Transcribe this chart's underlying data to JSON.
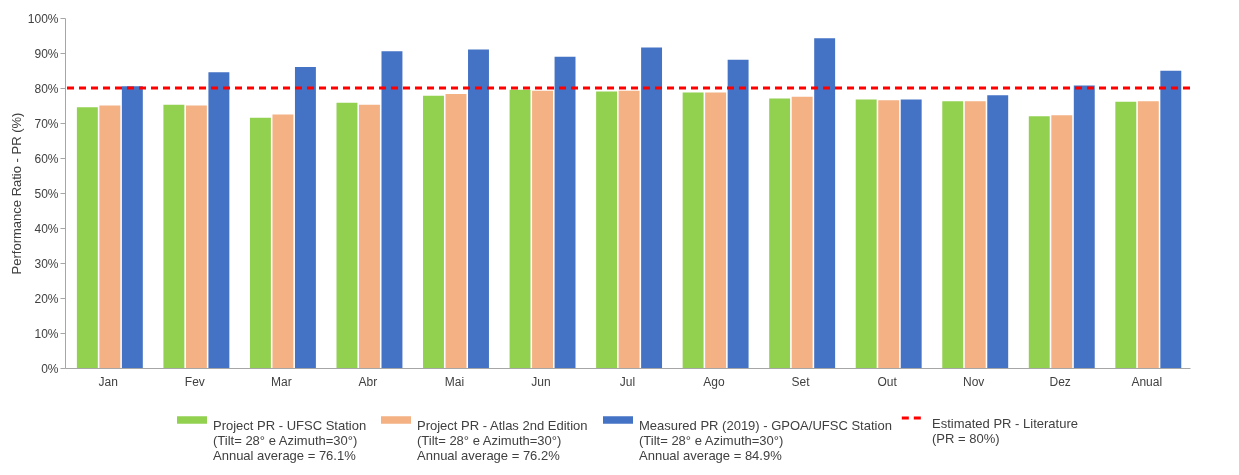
{
  "chart_data": {
    "type": "bar",
    "ylabel": "Performance Ratio - PR (%)",
    "categories": [
      "Jan",
      "Fev",
      "Mar",
      "Abr",
      "Mai",
      "Jun",
      "Jul",
      "Ago",
      "Set",
      "Out",
      "Nov",
      "Dez",
      "Anual"
    ],
    "series": [
      {
        "name": "Project PR - UFSC Station\n(Tilt= 28° e Azimuth=30°)\nAnnual average = 76.1%",
        "color": "#92d050",
        "values": [
          74.5,
          75.2,
          71.5,
          75.8,
          77.8,
          79.5,
          79.0,
          78.7,
          77.0,
          76.7,
          76.2,
          71.9,
          76.1
        ]
      },
      {
        "name": "Project PR - Atlas 2nd Edition\n(Tilt= 28° e Azimuth=30°)\nAnnual average = 76.2%",
        "color": "#f4b183",
        "values": [
          75.0,
          75.0,
          72.4,
          75.2,
          78.3,
          79.2,
          79.2,
          78.7,
          77.5,
          76.5,
          76.2,
          72.2,
          76.2
        ]
      },
      {
        "name": "Measured PR (2019) - GPOA/UFSC Station\n(Tilt= 28° e Azimuth=30°)\nAnnual average = 84.9%",
        "color": "#4472c4",
        "values": [
          80.5,
          84.5,
          86.0,
          90.5,
          91.0,
          88.9,
          91.6,
          88.1,
          94.2,
          76.7,
          77.9,
          80.7,
          84.9
        ]
      }
    ],
    "ref_lines": [
      {
        "axis": "y",
        "value": 80,
        "label": "Estimated PR - Literature\n(PR = 80%)",
        "color": "#ff0000",
        "line_style": "dashed"
      }
    ],
    "ylim": [
      0,
      100
    ],
    "yticks": [
      {
        "value": 0,
        "label": "0%"
      },
      {
        "value": 10,
        "label": "10%"
      },
      {
        "value": 20,
        "label": "20%"
      },
      {
        "value": 30,
        "label": "30%"
      },
      {
        "value": 40,
        "label": "40%"
      },
      {
        "value": 50,
        "label": "50%"
      },
      {
        "value": 60,
        "label": "60%"
      },
      {
        "value": 70,
        "label": "70%"
      },
      {
        "value": 80,
        "label": "80%"
      },
      {
        "value": 90,
        "label": "90%"
      },
      {
        "value": 100,
        "label": "100%"
      }
    ],
    "grid": false,
    "legend": "bottom"
  }
}
